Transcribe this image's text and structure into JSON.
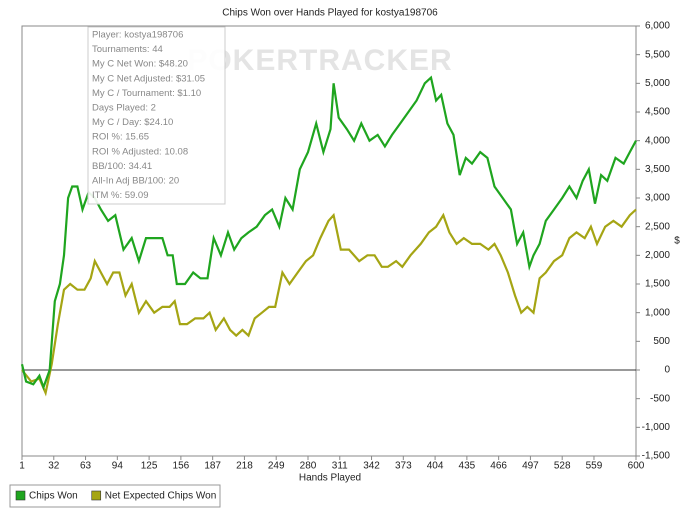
{
  "chart_data": {
    "type": "line",
    "title": "Chips Won over Hands Played for kostya198706",
    "watermark": "POKERTRACKER",
    "x_label": "Hands Played",
    "y_label": "$",
    "xlim": [
      1,
      600
    ],
    "xticks": [
      1,
      32,
      63,
      94,
      125,
      156,
      187,
      218,
      249,
      280,
      311,
      342,
      373,
      404,
      435,
      466,
      497,
      528,
      559,
      600
    ],
    "ylim": [
      -1500,
      6000
    ],
    "yticks": [
      {
        "value": -1500,
        "label": "-1,500"
      },
      {
        "value": -1000,
        "label": "-1,000"
      },
      -500,
      0,
      500,
      {
        "value": 1000,
        "label": "1,000"
      },
      {
        "value": 1500,
        "label": "1,500"
      },
      {
        "value": 2000,
        "label": "2,000"
      },
      {
        "value": 2500,
        "label": "2,500"
      },
      {
        "value": 3000,
        "label": "3,000"
      },
      {
        "value": 3500,
        "label": "3,500"
      },
      {
        "value": 4000,
        "label": "4,000"
      },
      {
        "value": 4500,
        "label": "4,500"
      },
      {
        "value": 5000,
        "label": "5,000"
      },
      {
        "value": 5500,
        "label": "5,500"
      },
      {
        "value": 6000,
        "label": "6,000"
      }
    ],
    "tooltip": [
      "Player: kostya198706",
      "Tournaments: 44",
      "My C Net Won: $48.20",
      "My C Net Adjusted: $31.05",
      "My C / Tournament: $1.10",
      "Days Played: 2",
      "My C / Day: $24.10",
      "ROI %: 15.65",
      "ROI % Adjusted: 10.08",
      "BB/100: 34.41",
      "All-In Adj BB/100: 20",
      "ITM %: 59.09"
    ],
    "series": [
      {
        "name": "Chips Won",
        "color": "#1fa51f",
        "x": [
          1,
          5,
          12,
          18,
          22,
          28,
          33,
          38,
          42,
          46,
          50,
          55,
          60,
          66,
          72,
          78,
          85,
          92,
          100,
          108,
          115,
          122,
          130,
          138,
          143,
          148,
          152,
          160,
          168,
          175,
          182,
          188,
          195,
          202,
          208,
          215,
          222,
          230,
          238,
          245,
          252,
          258,
          265,
          272,
          280,
          288,
          295,
          302,
          305,
          310,
          318,
          325,
          332,
          340,
          348,
          355,
          362,
          370,
          378,
          386,
          394,
          400,
          405,
          410,
          416,
          422,
          428,
          434,
          440,
          448,
          455,
          462,
          470,
          478,
          484,
          490,
          496,
          500,
          506,
          512,
          520,
          528,
          535,
          542,
          548,
          554,
          560,
          566,
          572,
          580,
          588,
          594,
          600
        ],
        "values": [
          100,
          -200,
          -250,
          -100,
          -300,
          0,
          1200,
          1500,
          2000,
          3000,
          3200,
          3200,
          2800,
          3100,
          3000,
          2800,
          2600,
          2700,
          2100,
          2300,
          1900,
          2300,
          2300,
          2300,
          2000,
          2000,
          1500,
          1500,
          1700,
          1600,
          1600,
          2300,
          2000,
          2400,
          2100,
          2300,
          2400,
          2500,
          2700,
          2800,
          2500,
          3000,
          2800,
          3500,
          3800,
          4300,
          3800,
          4200,
          5000,
          4400,
          4200,
          4000,
          4300,
          4000,
          4100,
          3900,
          4100,
          4300,
          4500,
          4700,
          5000,
          5100,
          4700,
          4800,
          4300,
          4100,
          3400,
          3700,
          3600,
          3800,
          3700,
          3200,
          3000,
          2800,
          2200,
          2400,
          1800,
          2000,
          2200,
          2600,
          2800,
          3000,
          3200,
          3000,
          3300,
          3500,
          2900,
          3400,
          3300,
          3700,
          3600,
          3800,
          4000
        ]
      },
      {
        "name": "Net Expected Chips Won",
        "color": "#a5a514",
        "x": [
          1,
          10,
          18,
          24,
          30,
          36,
          42,
          48,
          55,
          62,
          68,
          72,
          78,
          84,
          90,
          96,
          102,
          108,
          115,
          122,
          130,
          138,
          145,
          150,
          155,
          162,
          170,
          178,
          184,
          190,
          198,
          204,
          210,
          216,
          222,
          228,
          235,
          242,
          248,
          255,
          262,
          270,
          278,
          285,
          292,
          300,
          305,
          312,
          320,
          330,
          338,
          345,
          352,
          358,
          366,
          372,
          380,
          390,
          398,
          405,
          412,
          418,
          425,
          432,
          440,
          448,
          456,
          462,
          468,
          475,
          482,
          488,
          494,
          500,
          506,
          512,
          520,
          528,
          535,
          542,
          550,
          556,
          562,
          570,
          578,
          586,
          594,
          600
        ],
        "values": [
          0,
          -200,
          -150,
          -400,
          100,
          800,
          1400,
          1500,
          1400,
          1400,
          1600,
          1900,
          1700,
          1500,
          1700,
          1700,
          1300,
          1500,
          1000,
          1200,
          1000,
          1100,
          1100,
          1200,
          800,
          800,
          900,
          900,
          1000,
          700,
          900,
          700,
          600,
          700,
          600,
          900,
          1000,
          1100,
          1100,
          1700,
          1500,
          1700,
          1900,
          2000,
          2300,
          2600,
          2700,
          2100,
          2100,
          1900,
          2000,
          2000,
          1800,
          1800,
          1900,
          1800,
          2000,
          2200,
          2400,
          2500,
          2700,
          2400,
          2200,
          2300,
          2200,
          2200,
          2100,
          2200,
          2000,
          1700,
          1300,
          1000,
          1100,
          1000,
          1600,
          1700,
          1900,
          2000,
          2300,
          2400,
          2300,
          2500,
          2200,
          2500,
          2600,
          2500,
          2700,
          2800
        ]
      }
    ]
  }
}
